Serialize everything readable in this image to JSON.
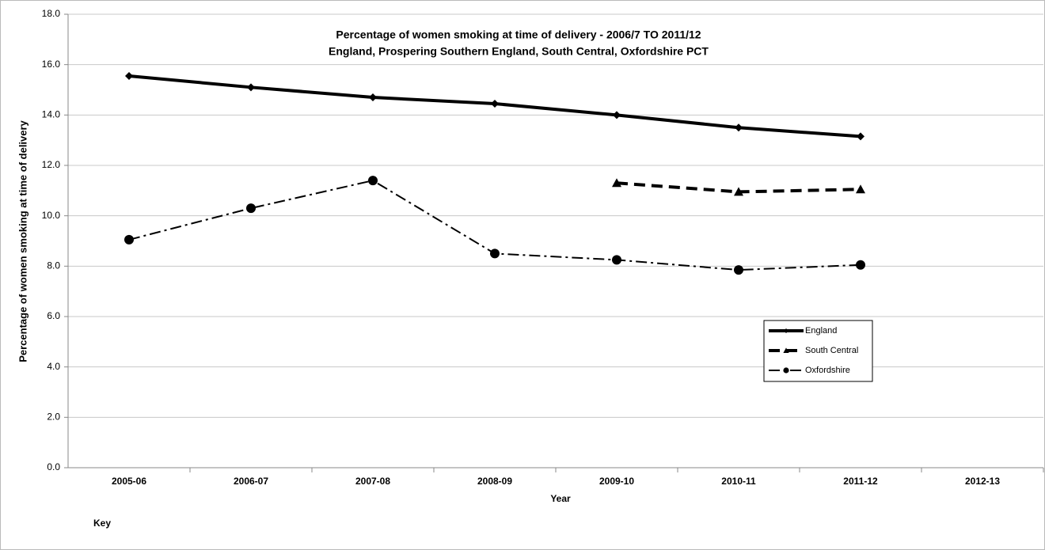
{
  "chart_data": {
    "type": "line",
    "title": "Percentage of women smoking at time of delivery - 2006/7 TO 2011/12",
    "subtitle": "England, Prospering Southern England, South Central, Oxfordshire PCT",
    "x_label": "Year",
    "y_label": "Percentage of women smoking at time of delivery",
    "annotation": "Key",
    "categories": [
      "2005-06",
      "2006-07",
      "2007-08",
      "2008-09",
      "2009-10",
      "2010-11",
      "2011-12",
      "2012-13"
    ],
    "series": [
      {
        "name": "England",
        "color": "#000000",
        "line_style": "solid",
        "marker": "diamond",
        "values": [
          15.55,
          15.1,
          14.7,
          14.45,
          14.0,
          13.5,
          13.15,
          null
        ]
      },
      {
        "name": "South Central",
        "color": "#000000",
        "line_style": "dashed",
        "marker": "triangle",
        "values": [
          null,
          null,
          null,
          null,
          11.3,
          10.95,
          11.05,
          null
        ]
      },
      {
        "name": "Oxfordshire",
        "color": "#000000",
        "line_style": "dashdot",
        "marker": "circle",
        "values": [
          9.05,
          10.3,
          11.4,
          8.5,
          8.25,
          7.85,
          8.05,
          null
        ]
      }
    ],
    "ylim": [
      0,
      18
    ],
    "yticks": [
      {
        "value": 0,
        "label": "0.0"
      },
      {
        "value": 2,
        "label": "2.0"
      },
      {
        "value": 4,
        "label": "4.0"
      },
      {
        "value": 6,
        "label": "6.0"
      },
      {
        "value": 8,
        "label": "8.0"
      },
      {
        "value": 10,
        "label": "10.0"
      },
      {
        "value": 12,
        "label": "12.0"
      },
      {
        "value": 14,
        "label": "14.0"
      },
      {
        "value": 16,
        "label": "16.0"
      },
      {
        "value": 18,
        "label": "18.0"
      }
    ],
    "grid": true,
    "legend": "lower right"
  }
}
